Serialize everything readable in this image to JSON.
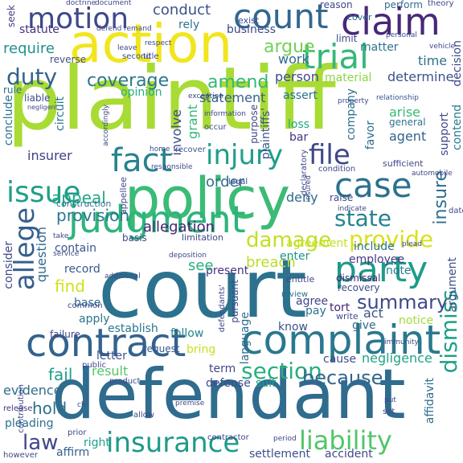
{
  "words": [
    {
      "id": "plaintiff",
      "text": "plaintiff",
      "color": "#a8db34"
    },
    {
      "id": "court",
      "text": "court",
      "color": "#2c728e"
    },
    {
      "id": "defendant",
      "text": "defendant",
      "color": "#2f6c8e"
    },
    {
      "id": "policy",
      "text": "policy",
      "color": "#3bbb75"
    },
    {
      "id": "action",
      "text": "action",
      "color": "#f1e51d"
    },
    {
      "id": "complaint",
      "text": "complaint",
      "color": "#2a788e"
    },
    {
      "id": "contract",
      "text": "contract",
      "color": "#33638d"
    },
    {
      "id": "judgment",
      "text": "judgment",
      "color": "#2eb37c"
    },
    {
      "id": "claim",
      "text": "claim",
      "color": "#482878"
    },
    {
      "id": "fact",
      "text": "fact",
      "color": "#26828e"
    },
    {
      "id": "count",
      "text": "count",
      "color": "#31688e"
    },
    {
      "id": "motion",
      "text": "motion",
      "color": "#3e4989"
    },
    {
      "id": "trial",
      "text": "trial",
      "color": "#35b779"
    },
    {
      "id": "injury",
      "text": "injury",
      "color": "#1f9e89"
    },
    {
      "id": "file",
      "text": "file",
      "color": "#3f4788"
    },
    {
      "id": "case",
      "text": "case",
      "color": "#2c728e"
    },
    {
      "id": "issue",
      "text": "issue",
      "color": "#1f9e89"
    },
    {
      "id": "party",
      "text": "party",
      "color": "#1e9b8a"
    },
    {
      "id": "allege",
      "text": "allege",
      "color": "#35608d"
    },
    {
      "id": "insurance",
      "text": "insurance",
      "color": "#1f9a8a"
    },
    {
      "id": "liability",
      "text": "liability",
      "color": "#52c569"
    },
    {
      "id": "damage",
      "text": "damage",
      "color": "#c2df23"
    },
    {
      "id": "provide",
      "text": "provide",
      "color": "#d8e219"
    },
    {
      "id": "state",
      "text": "state",
      "color": "#25848e"
    },
    {
      "id": "summary",
      "text": "summary",
      "color": "#3e4a89"
    },
    {
      "id": "section",
      "text": "section",
      "color": "#29af7f"
    },
    {
      "id": "because",
      "text": "because",
      "color": "#32658e"
    },
    {
      "id": "duty",
      "text": "duty",
      "color": "#33638d"
    },
    {
      "id": "coverage",
      "text": "coverage",
      "color": "#2a788e"
    },
    {
      "id": "conduct",
      "text": "conduct",
      "color": "#3b528b"
    },
    {
      "id": "argue",
      "text": "argue",
      "color": "#73d055"
    },
    {
      "id": "require",
      "text": "require",
      "color": "#21918c"
    },
    {
      "id": "amend",
      "text": "amend",
      "color": "#35b779"
    },
    {
      "id": "appeal",
      "text": "appeal",
      "color": "#21a685"
    },
    {
      "id": "provision",
      "text": "provision",
      "color": "#29798e"
    },
    {
      "id": "allegation",
      "text": "allegation",
      "color": "#482475"
    },
    {
      "id": "dismiss",
      "text": "dismiss",
      "color": "#1fa088"
    },
    {
      "id": "insurer",
      "text": "insurer",
      "color": "#424086"
    },
    {
      "id": "order",
      "text": "order",
      "color": "#2d708e"
    },
    {
      "id": "fail",
      "text": "fail",
      "color": "#1f9e89"
    },
    {
      "id": "hold",
      "text": "hold",
      "color": "#2d708e"
    },
    {
      "id": "law",
      "text": "law",
      "color": "#3f4788"
    },
    {
      "id": "insure",
      "text": "insure",
      "color": "#2e6e8e"
    },
    {
      "id": "breach",
      "text": "breach",
      "color": "#b8de29"
    },
    {
      "id": "find",
      "text": "find",
      "color": "#d0e11c"
    },
    {
      "id": "statement",
      "text": "statement",
      "color": "#355f8d"
    },
    {
      "id": "business",
      "text": "business",
      "color": "#3e4989"
    },
    {
      "id": "work",
      "text": "work",
      "color": "#30698e"
    },
    {
      "id": "time",
      "text": "time",
      "color": "#2d718e"
    },
    {
      "id": "determine",
      "text": "determine",
      "color": "#3b528b"
    },
    {
      "id": "person",
      "text": "person",
      "color": "#3f4889"
    },
    {
      "id": "material",
      "text": "material",
      "color": "#8bd646"
    },
    {
      "id": "opinion",
      "text": "opinion",
      "color": "#26ad81"
    },
    {
      "id": "assert",
      "text": "assert",
      "color": "#2d708e"
    },
    {
      "id": "arise",
      "text": "arise",
      "color": "#38b977"
    },
    {
      "id": "agent",
      "text": "agent",
      "color": "#33638d"
    },
    {
      "id": "loss",
      "text": "loss",
      "color": "#21a585"
    },
    {
      "id": "bar",
      "text": "bar",
      "color": "#46337f"
    },
    {
      "id": "grant",
      "text": "grant",
      "color": "#32b67a"
    },
    {
      "id": "involve",
      "text": "involve",
      "color": "#3e4a89"
    },
    {
      "id": "record",
      "text": "record",
      "color": "#38588c"
    },
    {
      "id": "contain",
      "text": "contain",
      "color": "#39568c"
    },
    {
      "id": "deny",
      "text": "deny",
      "color": "#2f6b8e"
    },
    {
      "id": "enter",
      "text": "enter",
      "color": "#20928c"
    },
    {
      "id": "agreement",
      "text": "agreement",
      "color": "#c5e021"
    },
    {
      "id": "include",
      "text": "include",
      "color": "#2d718e"
    },
    {
      "id": "employee",
      "text": "employee",
      "color": "#443983"
    },
    {
      "id": "present",
      "text": "present",
      "color": "#46307e"
    },
    {
      "id": "see",
      "text": "see",
      "color": "#29af7f"
    },
    {
      "id": "base",
      "text": "base",
      "color": "#2f6b8e"
    },
    {
      "id": "apply",
      "text": "apply",
      "color": "#2b748e"
    },
    {
      "id": "pay",
      "text": "pay",
      "color": "#2c718e"
    },
    {
      "id": "act",
      "text": "act",
      "color": "#3b528b"
    },
    {
      "id": "agree",
      "text": "agree",
      "color": "#404588"
    },
    {
      "id": "tort",
      "text": "tort",
      "color": "#482576"
    },
    {
      "id": "note",
      "text": "note",
      "color": "#287c8e"
    },
    {
      "id": "establish",
      "text": "establish",
      "color": "#2b758e"
    },
    {
      "id": "follow",
      "text": "follow",
      "color": "#25848e"
    },
    {
      "id": "bring",
      "text": "bring",
      "color": "#c8e020"
    },
    {
      "id": "know",
      "text": "know",
      "color": "#3c4f8a"
    },
    {
      "id": "give",
      "text": "give",
      "color": "#2f6b8e"
    },
    {
      "id": "notice",
      "text": "notice",
      "color": "#a0da39"
    },
    {
      "id": "result",
      "text": "result",
      "color": "#56c667"
    },
    {
      "id": "letter",
      "text": "letter",
      "color": "#3b528b"
    },
    {
      "id": "term",
      "text": "term",
      "color": "#404588"
    },
    {
      "id": "cause",
      "text": "cause",
      "color": "#3e4c8a"
    },
    {
      "id": "negligence",
      "text": "negligence",
      "color": "#20a386"
    },
    {
      "id": "defense",
      "text": "defense",
      "color": "#3e4a89"
    },
    {
      "id": "suit",
      "text": "suit",
      "color": "#1fa088"
    },
    {
      "id": "evidence",
      "text": "evidence",
      "color": "#2e6e8e"
    },
    {
      "id": "pleading",
      "text": "pleading",
      "color": "#2d708e"
    },
    {
      "id": "right",
      "text": "right",
      "color": "#1f9f88"
    },
    {
      "id": "affirm",
      "text": "affirm",
      "color": "#355f8d"
    },
    {
      "id": "settlement",
      "text": "settlement",
      "color": "#3c4f8a"
    },
    {
      "id": "accident",
      "text": "accident",
      "color": "#3e4989"
    },
    {
      "id": "consider",
      "text": "consider",
      "color": "#3f4889"
    },
    {
      "id": "question",
      "text": "question",
      "color": "#306a8e"
    },
    {
      "id": "seek",
      "text": "seek",
      "color": "#424186"
    },
    {
      "id": "statute",
      "text": "statute",
      "color": "#46327e"
    },
    {
      "id": "conclude",
      "text": "conclude",
      "color": "#2a768e"
    },
    {
      "id": "rule",
      "text": "rule",
      "color": "#2f6c8e"
    },
    {
      "id": "rely",
      "text": "rely",
      "color": "#2c728e"
    },
    {
      "id": "reason",
      "text": "reason",
      "color": "#3f4788"
    },
    {
      "id": "matter",
      "text": "matter",
      "color": "#2d718e"
    },
    {
      "id": "company",
      "text": "company",
      "color": "#2e6f8e"
    },
    {
      "id": "decision",
      "text": "decision",
      "color": "#3f4889"
    },
    {
      "id": "contend",
      "text": "contend",
      "color": "#297a8e"
    },
    {
      "id": "support",
      "text": "support",
      "color": "#3e4a89"
    },
    {
      "id": "favor",
      "text": "favor",
      "color": "#2f6c8e"
    },
    {
      "id": "argument",
      "text": "argument",
      "color": "#3b518b"
    },
    {
      "id": "limit",
      "text": "limit",
      "color": "#3e4989"
    },
    {
      "id": "affidavit",
      "text": "affidavit",
      "color": "#2f6b8e"
    },
    {
      "id": "language",
      "text": "language",
      "color": "#2f6c8e"
    },
    {
      "id": "review",
      "text": "review",
      "color": "#2d718e"
    },
    {
      "id": "request",
      "text": "request",
      "color": "#38588c"
    },
    {
      "id": "circuit",
      "text": "circuit",
      "color": "#2a788e"
    },
    {
      "id": "liable",
      "text": "liable",
      "color": "#3e4c8a"
    },
    {
      "id": "reverse",
      "text": "reverse",
      "color": "#3b528b"
    },
    {
      "id": "general",
      "text": "general",
      "color": "#2c728e"
    },
    {
      "id": "plaintiffs",
      "text": "plaintiffs'",
      "color": "#3b528b"
    },
    {
      "id": "occur",
      "text": "occur",
      "color": "#3e4989"
    },
    {
      "id": "recover",
      "text": "recover",
      "color": "#38588c"
    },
    {
      "id": "recovery",
      "text": "recovery",
      "color": "#3e4989"
    },
    {
      "id": "dismissal",
      "text": "dismissal",
      "color": "#482475"
    },
    {
      "id": "condition",
      "text": "condition",
      "color": "#3e4989"
    },
    {
      "id": "exist",
      "text": "exist",
      "color": "#3e4989"
    },
    {
      "id": "cover",
      "text": "cover",
      "color": "#2d708e"
    },
    {
      "id": "perform",
      "text": "perform",
      "color": "#2f6b8e"
    },
    {
      "id": "second",
      "text": "second",
      "color": "#3b528b"
    },
    {
      "id": "relationship",
      "text": "relationship",
      "color": "#3b528b"
    },
    {
      "id": "purpose",
      "text": "purpose",
      "color": "#404588"
    },
    {
      "id": "raise",
      "text": "raise",
      "color": "#3e4989"
    },
    {
      "id": "legal",
      "text": "legal",
      "color": "#3e4989"
    },
    {
      "id": "sufficient",
      "text": "sufficient",
      "color": "#3e4989"
    },
    {
      "id": "automobile",
      "text": "automobile",
      "color": "#3e4989"
    },
    {
      "id": "immunity",
      "text": "immunity",
      "color": "#3e4989"
    },
    {
      "id": "product",
      "text": "product",
      "color": "#3e4989"
    },
    {
      "id": "contractor",
      "text": "contractor",
      "color": "#3e4989"
    },
    {
      "id": "period",
      "text": "period",
      "color": "#3e4989"
    },
    {
      "id": "however",
      "text": "however",
      "color": "#3e4989"
    },
    {
      "id": "prior",
      "text": "prior",
      "color": "#3e4989"
    },
    {
      "id": "release",
      "text": "release",
      "color": "#46327e"
    },
    {
      "id": "allow",
      "text": "allow",
      "color": "#3e4989"
    },
    {
      "id": "public",
      "text": "public",
      "color": "#3e4989"
    },
    {
      "id": "failure",
      "text": "failure",
      "color": "#3e4989"
    },
    {
      "id": "common",
      "text": "common",
      "color": "#3e4989"
    },
    {
      "id": "basis",
      "text": "basis",
      "color": "#3e4989"
    },
    {
      "id": "construction",
      "text": "construction",
      "color": "#2c728e"
    },
    {
      "id": "limitation",
      "text": "limitation",
      "color": "#3e4989"
    },
    {
      "id": "pursuant",
      "text": "pursuant",
      "color": "#3e4989"
    },
    {
      "id": "write",
      "text": "write",
      "color": "#3e4989"
    },
    {
      "id": "entitle",
      "text": "entitle",
      "color": "#3e4989"
    },
    {
      "id": "declaratory",
      "text": "declaratory",
      "color": "#3e4989"
    },
    {
      "id": "deposition",
      "text": "deposition",
      "color": "#3e4989"
    },
    {
      "id": "appellee",
      "text": "appellee",
      "color": "#3e4989"
    },
    {
      "id": "defendants",
      "text": "defendants'",
      "color": "#3e4989"
    },
    {
      "id": "indicate",
      "text": "indicate",
      "color": "#3e4989"
    },
    {
      "id": "date",
      "text": "date",
      "color": "#3e4989"
    },
    {
      "id": "remand",
      "text": "remand",
      "color": "#3e4989"
    },
    {
      "id": "defend",
      "text": "defend",
      "color": "#3e4989"
    },
    {
      "id": "doctrine",
      "text": "doctrine",
      "color": "#3e4989"
    },
    {
      "id": "document",
      "text": "document",
      "color": "#3e4989"
    },
    {
      "id": "theory",
      "text": "theory",
      "color": "#3e4989"
    },
    {
      "id": "leave",
      "text": "leave",
      "color": "#3e4989"
    },
    {
      "id": "respect",
      "text": "respect",
      "color": "#3e4989"
    },
    {
      "id": "personal",
      "text": "personal",
      "color": "#3e4989"
    },
    {
      "id": "vehicle",
      "text": "vehicle",
      "color": "#3e4989"
    },
    {
      "id": "title",
      "text": "title",
      "color": "#3e4989"
    },
    {
      "id": "property",
      "text": "property",
      "color": "#3e4989"
    },
    {
      "id": "home",
      "text": "home",
      "color": "#3e4989"
    },
    {
      "id": "responsible",
      "text": "responsible",
      "color": "#3e4989"
    },
    {
      "id": "contribution",
      "text": "contribution",
      "color": "#3e4989"
    },
    {
      "id": "take",
      "text": "take",
      "color": "#3e4989"
    },
    {
      "id": "service",
      "text": "service",
      "color": "#3e4989"
    },
    {
      "id": "additional",
      "text": "additional",
      "color": "#3e4989"
    },
    {
      "id": "plead",
      "text": "plead",
      "color": "#3e4989"
    },
    {
      "id": "set",
      "text": "set",
      "color": "#3e4989"
    },
    {
      "id": "put",
      "text": "put",
      "color": "#3e4989"
    },
    {
      "id": "negligent",
      "text": "negligent",
      "color": "#3e4989"
    },
    {
      "id": "information",
      "text": "information",
      "color": "#3e4989"
    },
    {
      "id": "exception",
      "text": "exception",
      "color": "#3e4989"
    },
    {
      "id": "accordingly",
      "text": "accordingly",
      "color": "#3e4989"
    },
    {
      "id": "insured",
      "text": "insured",
      "color": "#3e4989"
    },
    {
      "id": "premise",
      "text": "premise",
      "color": "#3e4989"
    },
    {
      "id": "ch",
      "text": "ch",
      "color": "#3e4989"
    }
  ]
}
